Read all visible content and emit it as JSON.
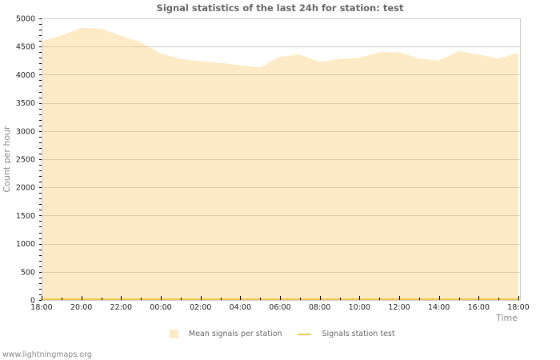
{
  "chart_data": {
    "type": "area",
    "title": "Signal statistics of the last 24h for station: test",
    "xlabel": "Time",
    "ylabel": "Count per hour",
    "ylim": [
      0,
      5000
    ],
    "yticks": [
      0,
      500,
      1000,
      1500,
      2000,
      2500,
      3000,
      3500,
      4000,
      4500,
      5000
    ],
    "xticks": [
      "18:00",
      "20:00",
      "22:00",
      "00:00",
      "02:00",
      "04:00",
      "06:00",
      "08:00",
      "10:00",
      "12:00",
      "14:00",
      "16:00",
      "18:00"
    ],
    "grid": true,
    "legend_position": "bottom",
    "x": [
      "18:00",
      "19:00",
      "20:00",
      "21:00",
      "22:00",
      "23:00",
      "00:00",
      "01:00",
      "02:00",
      "03:00",
      "04:00",
      "05:00",
      "06:00",
      "07:00",
      "08:00",
      "09:00",
      "10:00",
      "11:00",
      "12:00",
      "13:00",
      "14:00",
      "15:00",
      "16:00",
      "17:00",
      "18:00"
    ],
    "series": [
      {
        "name": "Mean signals per station",
        "kind": "area",
        "color": "#fdebc8",
        "values": [
          4600,
          4700,
          4830,
          4820,
          4690,
          4580,
          4380,
          4280,
          4240,
          4210,
          4170,
          4130,
          4320,
          4360,
          4230,
          4280,
          4300,
          4400,
          4400,
          4290,
          4250,
          4420,
          4360,
          4290,
          4390
        ]
      },
      {
        "name": "Signals station test",
        "kind": "line",
        "color": "#f5c84c",
        "values": [
          0,
          0,
          0,
          0,
          0,
          0,
          0,
          0,
          0,
          0,
          0,
          0,
          0,
          0,
          0,
          0,
          0,
          0,
          0,
          0,
          0,
          0,
          0,
          0,
          0
        ]
      }
    ]
  },
  "footer": {
    "credit": "www.lightningmaps.org"
  }
}
